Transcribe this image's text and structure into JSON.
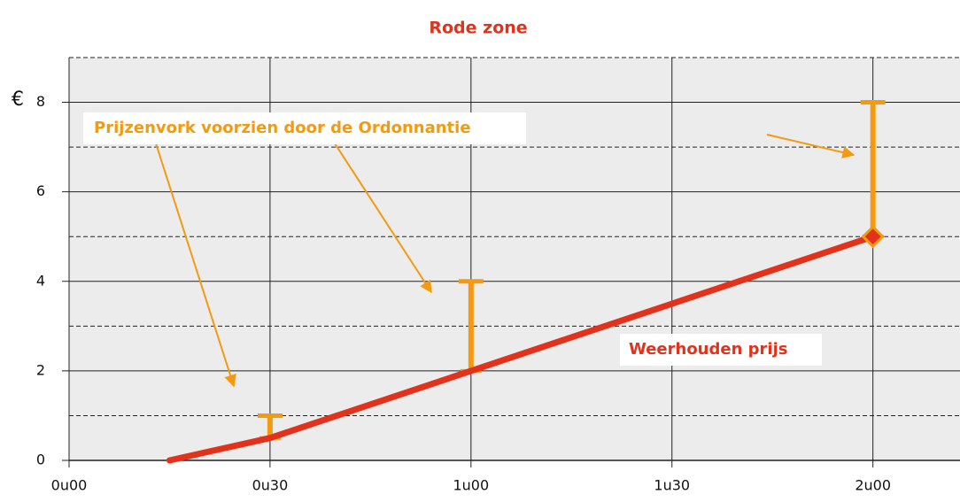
{
  "chart_data": {
    "type": "line",
    "title": "Rode zone",
    "y_unit": "€",
    "x": [
      15,
      30,
      60,
      120
    ],
    "series": [
      {
        "name": "Weerhouden prijs",
        "color": "#e2321c",
        "values": [
          0,
          0.5,
          2,
          5
        ]
      }
    ],
    "ranges": {
      "name": "Prijzenvork voorzien door de Ordonnantie",
      "color": "#f39a10",
      "x": [
        30,
        60,
        120
      ],
      "low": [
        0.5,
        2,
        5
      ],
      "high": [
        1,
        4,
        8
      ]
    },
    "xlim": [
      0,
      133
    ],
    "xticks": [
      {
        "value": 0,
        "label": "0u00"
      },
      {
        "value": 30,
        "label": "0u30"
      },
      {
        "value": 60,
        "label": "1u00"
      },
      {
        "value": 90,
        "label": "1u30"
      },
      {
        "value": 120,
        "label": "2u00"
      }
    ],
    "ylim": [
      0,
      9
    ],
    "yticks": [
      0,
      2,
      4,
      6,
      8
    ],
    "yminor": [
      1,
      3,
      5,
      7,
      9
    ],
    "grid": true
  }
}
